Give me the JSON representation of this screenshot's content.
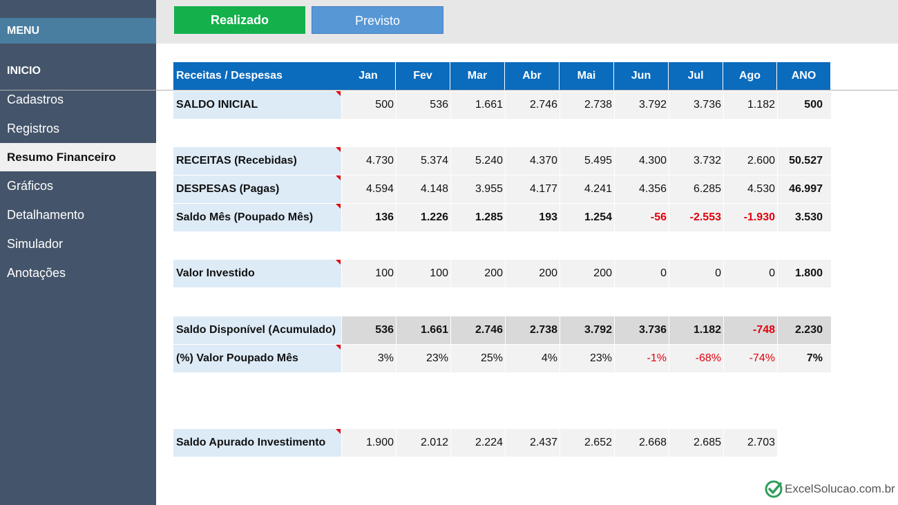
{
  "sidebar": {
    "menu_title": "MENU",
    "items": [
      {
        "label": "INICIO"
      },
      {
        "label": "Cadastros"
      },
      {
        "label": "Registros"
      },
      {
        "label": "Resumo Financeiro"
      },
      {
        "label": "Gráficos"
      },
      {
        "label": "Detalhamento"
      },
      {
        "label": "Simulador"
      },
      {
        "label": "Anotações"
      }
    ]
  },
  "topbar": {
    "realizado": "Realizado",
    "previsto": "Previsto"
  },
  "table": {
    "header": [
      "Receitas / Despesas",
      "Jan",
      "Fev",
      "Mar",
      "Abr",
      "Mai",
      "Jun",
      "Jul",
      "Ago",
      "ANO"
    ],
    "rows": [
      {
        "label": "SALDO INICIAL",
        "values": [
          "500",
          "536",
          "1.661",
          "2.746",
          "2.738",
          "3.792",
          "3.736",
          "1.182"
        ],
        "ano": "500"
      },
      {
        "label": "RECEITAS (Recebidas)",
        "values": [
          "4.730",
          "5.374",
          "5.240",
          "4.370",
          "5.495",
          "4.300",
          "3.732",
          "2.600"
        ],
        "ano": "50.527"
      },
      {
        "label": "DESPESAS (Pagas)",
        "values": [
          "4.594",
          "4.148",
          "3.955",
          "4.177",
          "4.241",
          "4.356",
          "6.285",
          "4.530"
        ],
        "ano": "46.997"
      },
      {
        "label": "Saldo Mês (Poupado Mês)",
        "values": [
          "136",
          "1.226",
          "1.285",
          "193",
          "1.254",
          "-56",
          "-2.553",
          "-1.930"
        ],
        "ano": "3.530"
      },
      {
        "label": "Valor Investido",
        "values": [
          "100",
          "100",
          "200",
          "200",
          "200",
          "0",
          "0",
          "0"
        ],
        "ano": "1.800"
      },
      {
        "label": "Saldo Disponível (Acumulado)",
        "values": [
          "536",
          "1.661",
          "2.746",
          "2.738",
          "3.792",
          "3.736",
          "1.182",
          "-748"
        ],
        "ano": "2.230"
      },
      {
        "label": "(%) Valor Poupado Mês",
        "values": [
          "3%",
          "23%",
          "25%",
          "4%",
          "23%",
          "-1%",
          "-68%",
          "-74%"
        ],
        "ano": "7%"
      },
      {
        "label": "Saldo Apurado Investimento",
        "values": [
          "1.900",
          "2.012",
          "2.224",
          "2.437",
          "2.652",
          "2.668",
          "2.685",
          "2.703"
        ]
      }
    ]
  },
  "colors": {
    "sidebar": "#44546a",
    "header": "#0b6bbd",
    "realizado": "#13b04c",
    "previsto": "#5797d6",
    "negative": "#e0000c"
  },
  "logo": {
    "text": "ExcelSolucao.com.br",
    "icon": "check-shield-icon"
  }
}
